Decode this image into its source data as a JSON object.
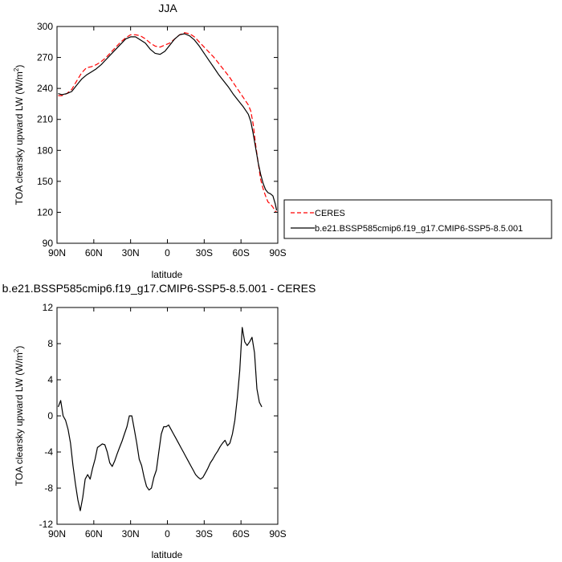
{
  "chart_data": [
    {
      "type": "line",
      "title": "JJA",
      "xlabel": "latitude",
      "ylabel": "TOA clearsky upward LW (W/m",
      "ylabel_sup": "2",
      "ylabel_close": ")",
      "xlim": [
        90,
        -90
      ],
      "ylim": [
        90,
        300
      ],
      "xticks": [
        90,
        60,
        30,
        0,
        -30,
        -60,
        -90
      ],
      "xtick_labels": [
        "90N",
        "60N",
        "30N",
        "0",
        "30S",
        "60S",
        "90S"
      ],
      "yticks": [
        90,
        120,
        150,
        180,
        210,
        240,
        270,
        300
      ],
      "ytick_labels": [
        "90",
        "120",
        "150",
        "180",
        "210",
        "240",
        "270",
        "300"
      ],
      "legend": {
        "placement": "right",
        "entries": [
          "CERES",
          "b.e21.BSSP585cmip6.f19_g17.CMIP6-SSP5-8.5.001"
        ]
      },
      "series": [
        {
          "name": "CERES",
          "color": "#ff0000",
          "dash": "dashed",
          "points": [
            [
              89,
              233
            ],
            [
              86,
              233
            ],
            [
              82,
              235
            ],
            [
              78,
              239
            ],
            [
              74,
              247
            ],
            [
              70,
              255
            ],
            [
              66,
              260
            ],
            [
              62,
              261
            ],
            [
              58,
              263
            ],
            [
              54,
              266
            ],
            [
              50,
              270
            ],
            [
              46,
              275
            ],
            [
              42,
              280
            ],
            [
              38,
              285
            ],
            [
              34,
              289
            ],
            [
              30,
              292
            ],
            [
              26,
              292
            ],
            [
              22,
              291
            ],
            [
              18,
              288
            ],
            [
              14,
              284
            ],
            [
              10,
              281
            ],
            [
              6,
              280
            ],
            [
              2,
              282
            ],
            [
              -2,
              284
            ],
            [
              -6,
              288
            ],
            [
              -10,
              292
            ],
            [
              -14,
              294
            ],
            [
              -18,
              293
            ],
            [
              -22,
              290
            ],
            [
              -26,
              285
            ],
            [
              -30,
              280
            ],
            [
              -34,
              275
            ],
            [
              -38,
              270
            ],
            [
              -42,
              264
            ],
            [
              -46,
              258
            ],
            [
              -50,
              252
            ],
            [
              -54,
              245
            ],
            [
              -58,
              238
            ],
            [
              -62,
              231
            ],
            [
              -66,
              224
            ],
            [
              -68,
              218
            ],
            [
              -70,
              205
            ],
            [
              -72,
              185
            ],
            [
              -74,
              168
            ],
            [
              -76,
              152
            ],
            [
              -78,
              143
            ],
            [
              -80,
              136
            ],
            [
              -82,
              130
            ],
            [
              -84,
              128
            ],
            [
              -86,
              125
            ],
            [
              -88,
              121
            ],
            [
              -89,
              120
            ]
          ]
        },
        {
          "name": "b.e21.BSSP585cmip6.f19_g17.CMIP6-SSP5-8.5.001",
          "color": "#000000",
          "dash": "solid",
          "points": [
            [
              89,
              235
            ],
            [
              86,
              234
            ],
            [
              82,
              235
            ],
            [
              78,
              237
            ],
            [
              74,
              243
            ],
            [
              70,
              249
            ],
            [
              66,
              253
            ],
            [
              62,
              256
            ],
            [
              58,
              259
            ],
            [
              54,
              263
            ],
            [
              50,
              268
            ],
            [
              46,
              273
            ],
            [
              42,
              278
            ],
            [
              38,
              283
            ],
            [
              34,
              288
            ],
            [
              30,
              290
            ],
            [
              26,
              290
            ],
            [
              22,
              287
            ],
            [
              18,
              284
            ],
            [
              14,
              278
            ],
            [
              10,
              274
            ],
            [
              6,
              273
            ],
            [
              2,
              276
            ],
            [
              -2,
              282
            ],
            [
              -6,
              288
            ],
            [
              -10,
              292
            ],
            [
              -14,
              293
            ],
            [
              -18,
              291
            ],
            [
              -22,
              287
            ],
            [
              -26,
              281
            ],
            [
              -30,
              274
            ],
            [
              -34,
              267
            ],
            [
              -38,
              260
            ],
            [
              -42,
              253
            ],
            [
              -46,
              247
            ],
            [
              -50,
              241
            ],
            [
              -54,
              234
            ],
            [
              -58,
              228
            ],
            [
              -62,
              222
            ],
            [
              -66,
              215
            ],
            [
              -68,
              208
            ],
            [
              -70,
              196
            ],
            [
              -72,
              182
            ],
            [
              -74,
              168
            ],
            [
              -76,
              157
            ],
            [
              -78,
              148
            ],
            [
              -80,
              142
            ],
            [
              -82,
              139
            ],
            [
              -84,
              138
            ],
            [
              -86,
              136
            ],
            [
              -88,
              128
            ],
            [
              -89,
              122
            ]
          ]
        }
      ]
    },
    {
      "type": "line",
      "title": "b.e21.BSSP585cmip6.f19_g17.CMIP6-SSP5-8.5.001 - CERES",
      "xlabel": "latitude",
      "ylabel": "TOA clearsky upward LW (W/m",
      "ylabel_sup": "2",
      "ylabel_close": ")",
      "xlim": [
        90,
        -90
      ],
      "ylim": [
        -12,
        12
      ],
      "xticks": [
        90,
        60,
        30,
        0,
        -30,
        -60,
        -90
      ],
      "xtick_labels": [
        "90N",
        "60N",
        "30N",
        "0",
        "30S",
        "60S",
        "90S"
      ],
      "yticks": [
        -12,
        -8,
        -4,
        0,
        4,
        8,
        12
      ],
      "ytick_labels": [
        "-12",
        "-8",
        "-4",
        "0",
        "4",
        "8",
        "12"
      ],
      "series": [
        {
          "color": "#000000",
          "dash": "solid",
          "points": [
            [
              89,
              1.0
            ],
            [
              87,
              1.7
            ],
            [
              85,
              0.0
            ],
            [
              83,
              -0.5
            ],
            [
              81,
              -1.5
            ],
            [
              79,
              -3.0
            ],
            [
              77,
              -5.5
            ],
            [
              75,
              -7.5
            ],
            [
              73,
              -9.3
            ],
            [
              71,
              -10.5
            ],
            [
              69,
              -9.0
            ],
            [
              67,
              -7.0
            ],
            [
              65,
              -6.5
            ],
            [
              63,
              -7.0
            ],
            [
              61,
              -5.8
            ],
            [
              59,
              -4.8
            ],
            [
              57,
              -3.5
            ],
            [
              55,
              -3.3
            ],
            [
              53,
              -3.1
            ],
            [
              51,
              -3.2
            ],
            [
              49,
              -4.0
            ],
            [
              47,
              -5.2
            ],
            [
              45,
              -5.6
            ],
            [
              43,
              -5.0
            ],
            [
              41,
              -4.2
            ],
            [
              39,
              -3.5
            ],
            [
              37,
              -2.8
            ],
            [
              35,
              -2.0
            ],
            [
              33,
              -1.2
            ],
            [
              31,
              0.0
            ],
            [
              29,
              0.0
            ],
            [
              27,
              -1.5
            ],
            [
              25,
              -3.0
            ],
            [
              23,
              -4.8
            ],
            [
              21,
              -5.5
            ],
            [
              19,
              -6.8
            ],
            [
              17,
              -7.8
            ],
            [
              15,
              -8.2
            ],
            [
              13,
              -8.0
            ],
            [
              11,
              -6.8
            ],
            [
              9,
              -6.0
            ],
            [
              7,
              -4.0
            ],
            [
              5,
              -2.0
            ],
            [
              3,
              -1.2
            ],
            [
              1,
              -1.2
            ],
            [
              -1,
              -1.0
            ],
            [
              -3,
              -1.5
            ],
            [
              -5,
              -2.0
            ],
            [
              -7,
              -2.5
            ],
            [
              -9,
              -3.0
            ],
            [
              -11,
              -3.5
            ],
            [
              -13,
              -4.0
            ],
            [
              -15,
              -4.5
            ],
            [
              -17,
              -5.0
            ],
            [
              -19,
              -5.5
            ],
            [
              -21,
              -6.0
            ],
            [
              -23,
              -6.5
            ],
            [
              -25,
              -6.8
            ],
            [
              -27,
              -7.0
            ],
            [
              -29,
              -6.8
            ],
            [
              -31,
              -6.3
            ],
            [
              -33,
              -5.8
            ],
            [
              -35,
              -5.2
            ],
            [
              -37,
              -4.8
            ],
            [
              -39,
              -4.3
            ],
            [
              -41,
              -3.9
            ],
            [
              -43,
              -3.4
            ],
            [
              -45,
              -3.0
            ],
            [
              -47,
              -2.7
            ],
            [
              -49,
              -3.3
            ],
            [
              -51,
              -3.0
            ],
            [
              -53,
              -2.0
            ],
            [
              -55,
              -0.5
            ],
            [
              -57,
              2.0
            ],
            [
              -59,
              5.0
            ],
            [
              -61,
              9.8
            ],
            [
              -63,
              8.2
            ],
            [
              -65,
              7.8
            ],
            [
              -67,
              8.2
            ],
            [
              -69,
              8.7
            ],
            [
              -71,
              7.0
            ],
            [
              -73,
              3.0
            ],
            [
              -75,
              1.5
            ],
            [
              -77,
              1.0
            ]
          ]
        }
      ]
    }
  ]
}
